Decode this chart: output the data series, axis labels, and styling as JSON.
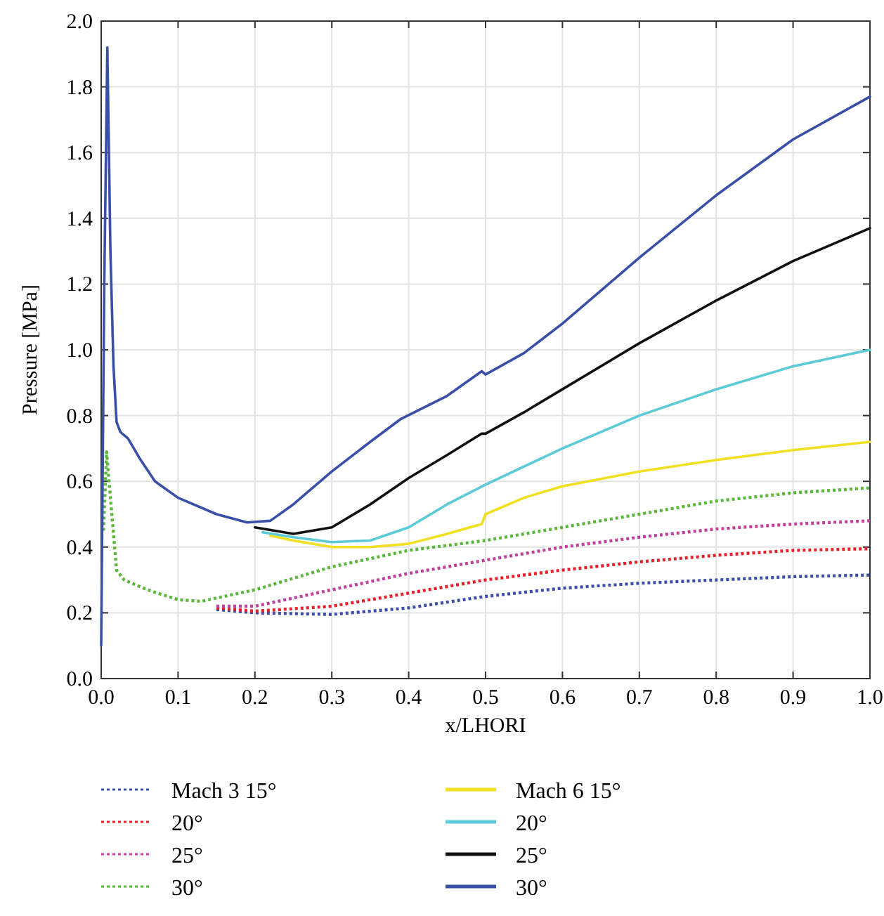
{
  "chart_data": {
    "type": "line",
    "xlabel": "x/LHORI",
    "ylabel": "Pressure [MPa]",
    "xlim": [
      0,
      1
    ],
    "ylim": [
      0,
      2
    ],
    "xticks": [
      {
        "value": 0,
        "label": "0.0"
      },
      0.1,
      0.2,
      0.3,
      0.4,
      0.5,
      0.6,
      0.7,
      0.8,
      0.9,
      {
        "value": 1,
        "label": "1.0"
      }
    ],
    "yticks": [
      {
        "value": 0,
        "label": "0.0"
      },
      0.2,
      0.4,
      0.6,
      0.8,
      {
        "value": 1,
        "label": "1.0"
      },
      1.2,
      1.4,
      1.6,
      1.8,
      {
        "value": 2,
        "label": "2.0"
      }
    ],
    "grid": true,
    "legend": "bottom",
    "marker": "none",
    "series": [
      {
        "name": "Mach 3 15°",
        "color": "#3a4fa8",
        "line_style": "dotted",
        "x": [
          0.15,
          0.2,
          0.3,
          0.4,
          0.5,
          0.6,
          0.7,
          0.8,
          0.9,
          1.0
        ],
        "values": [
          0.21,
          0.2,
          0.195,
          0.215,
          0.25,
          0.275,
          0.29,
          0.3,
          0.31,
          0.315
        ]
      },
      {
        "name": "20°",
        "color": "#e8202a",
        "line_style": "dotted",
        "x": [
          0.15,
          0.2,
          0.3,
          0.4,
          0.5,
          0.6,
          0.7,
          0.8,
          0.9,
          1.0
        ],
        "values": [
          0.215,
          0.205,
          0.22,
          0.26,
          0.3,
          0.33,
          0.355,
          0.375,
          0.39,
          0.395
        ]
      },
      {
        "name": "25°",
        "color": "#c040a0",
        "line_style": "dotted",
        "x": [
          0.15,
          0.2,
          0.3,
          0.4,
          0.5,
          0.6,
          0.7,
          0.8,
          0.9,
          1.0
        ],
        "values": [
          0.22,
          0.22,
          0.27,
          0.32,
          0.36,
          0.4,
          0.43,
          0.455,
          0.47,
          0.48
        ]
      },
      {
        "name": "30°",
        "color": "#5cb83c",
        "line_style": "dotted",
        "x": [
          0.003,
          0.007,
          0.012,
          0.02,
          0.03,
          0.06,
          0.1,
          0.13,
          0.2,
          0.3,
          0.4,
          0.5,
          0.6,
          0.7,
          0.8,
          0.9,
          1.0
        ],
        "values": [
          0.45,
          0.69,
          0.55,
          0.33,
          0.3,
          0.27,
          0.24,
          0.235,
          0.27,
          0.34,
          0.39,
          0.42,
          0.46,
          0.5,
          0.54,
          0.565,
          0.58
        ]
      },
      {
        "name": "Mach 6 15°",
        "color": "#f0e020",
        "line_style": "solid",
        "x": [
          0.22,
          0.25,
          0.3,
          0.35,
          0.4,
          0.45,
          0.495,
          0.5,
          0.55,
          0.6,
          0.7,
          0.8,
          0.9,
          1.0
        ],
        "values": [
          0.435,
          0.42,
          0.4,
          0.4,
          0.41,
          0.44,
          0.47,
          0.5,
          0.55,
          0.585,
          0.63,
          0.665,
          0.695,
          0.72
        ]
      },
      {
        "name": "20°",
        "color": "#5ccbd8",
        "line_style": "solid",
        "x": [
          0.21,
          0.25,
          0.3,
          0.35,
          0.4,
          0.45,
          0.5,
          0.6,
          0.7,
          0.8,
          0.9,
          1.0
        ],
        "values": [
          0.445,
          0.43,
          0.415,
          0.42,
          0.46,
          0.53,
          0.59,
          0.7,
          0.8,
          0.88,
          0.95,
          1.0
        ]
      },
      {
        "name": "25°",
        "color": "#111111",
        "line_style": "solid",
        "x": [
          0.2,
          0.25,
          0.3,
          0.35,
          0.4,
          0.45,
          0.495,
          0.5,
          0.55,
          0.6,
          0.7,
          0.8,
          0.9,
          1.0
        ],
        "values": [
          0.46,
          0.44,
          0.46,
          0.53,
          0.61,
          0.68,
          0.745,
          0.745,
          0.81,
          0.88,
          1.02,
          1.15,
          1.27,
          1.37
        ]
      },
      {
        "name": "30°",
        "color": "#3a4fa8",
        "line_style": "solid",
        "x": [
          0,
          0.004,
          0.008,
          0.012,
          0.016,
          0.02,
          0.025,
          0.035,
          0.05,
          0.07,
          0.1,
          0.15,
          0.19,
          0.22,
          0.25,
          0.3,
          0.35,
          0.39,
          0.45,
          0.495,
          0.5,
          0.55,
          0.6,
          0.7,
          0.8,
          0.9,
          1.0
        ],
        "values": [
          0.1,
          1.2,
          1.92,
          1.3,
          0.95,
          0.78,
          0.75,
          0.73,
          0.67,
          0.6,
          0.55,
          0.5,
          0.475,
          0.48,
          0.53,
          0.63,
          0.72,
          0.79,
          0.86,
          0.935,
          0.925,
          0.99,
          1.08,
          1.28,
          1.47,
          1.64,
          1.77
        ]
      }
    ]
  }
}
